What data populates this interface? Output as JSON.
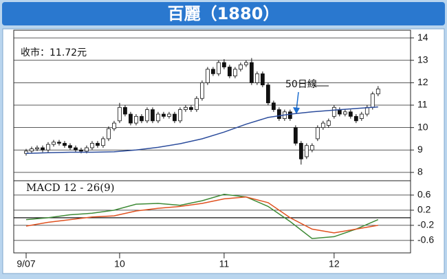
{
  "chart_data": [
    {
      "type": "candlestick",
      "title": "百麗（1880）",
      "annotations": [
        "收市：11.72元"
      ],
      "open": [
        8.85,
        8.95,
        9.05,
        9.1,
        9.0,
        9.25,
        9.35,
        9.3,
        9.2,
        9.1,
        9.0,
        8.95,
        9.1,
        9.3,
        9.2,
        9.5,
        9.95,
        10.3,
        10.9,
        10.6,
        10.2,
        10.5,
        10.3,
        10.8,
        10.3,
        10.6,
        10.5,
        10.6,
        10.3,
        10.8,
        10.9,
        10.8,
        11.3,
        12.0,
        12.6,
        12.4,
        12.9,
        12.7,
        12.3,
        12.6,
        12.8,
        12.9,
        12.0,
        12.4,
        11.9,
        11.1,
        10.8,
        10.4,
        10.7,
        10.0,
        9.3,
        8.7,
        9.0,
        9.5,
        10.0,
        10.1,
        10.5,
        10.8,
        10.6,
        10.7,
        10.5,
        10.4,
        10.6,
        10.9,
        11.5
      ],
      "high": [
        9.05,
        9.15,
        9.2,
        9.2,
        9.35,
        9.45,
        9.45,
        9.4,
        9.3,
        9.2,
        9.1,
        9.2,
        9.4,
        9.4,
        9.6,
        10.05,
        10.3,
        11.1,
        11.0,
        10.7,
        10.6,
        10.6,
        10.9,
        10.9,
        10.7,
        10.7,
        10.7,
        10.7,
        10.9,
        11.0,
        11.0,
        11.4,
        12.1,
        12.7,
        12.7,
        13.0,
        13.05,
        12.8,
        12.7,
        12.9,
        13.0,
        13.1,
        12.5,
        12.5,
        12.0,
        11.2,
        10.9,
        10.8,
        10.8,
        10.1,
        9.4,
        9.3,
        9.3,
        10.1,
        10.3,
        10.4,
        11.0,
        10.9,
        10.8,
        10.8,
        10.6,
        10.7,
        11.0,
        11.6,
        11.85
      ],
      "low": [
        8.75,
        8.85,
        8.95,
        8.9,
        8.9,
        9.15,
        9.2,
        9.1,
        9.0,
        8.9,
        8.85,
        8.85,
        9.0,
        9.1,
        9.1,
        9.4,
        9.85,
        10.2,
        10.5,
        10.1,
        10.1,
        10.2,
        10.2,
        10.2,
        10.2,
        10.4,
        10.4,
        10.2,
        10.2,
        10.7,
        10.7,
        10.7,
        11.2,
        11.9,
        12.3,
        12.3,
        12.6,
        12.2,
        12.2,
        12.5,
        12.7,
        11.9,
        11.9,
        11.8,
        11.0,
        10.7,
        10.3,
        10.3,
        10.3,
        9.2,
        8.35,
        8.6,
        8.9,
        9.4,
        9.9,
        10.0,
        10.4,
        10.5,
        10.5,
        10.4,
        10.2,
        10.3,
        10.5,
        10.8,
        11.4
      ],
      "close": [
        8.95,
        9.05,
        9.1,
        9.0,
        9.25,
        9.35,
        9.3,
        9.2,
        9.1,
        9.0,
        8.95,
        9.1,
        9.3,
        9.2,
        9.5,
        9.95,
        10.2,
        10.9,
        10.6,
        10.2,
        10.5,
        10.3,
        10.8,
        10.3,
        10.6,
        10.5,
        10.6,
        10.3,
        10.8,
        10.9,
        10.8,
        11.3,
        12.0,
        12.6,
        12.4,
        12.9,
        12.7,
        12.3,
        12.6,
        12.8,
        12.9,
        12.0,
        12.4,
        11.9,
        11.1,
        10.8,
        10.4,
        10.7,
        10.4,
        9.3,
        8.6,
        9.2,
        9.2,
        10.0,
        10.2,
        10.3,
        10.9,
        10.6,
        10.7,
        10.5,
        10.3,
        10.6,
        10.9,
        11.5,
        11.72
      ],
      "up_color": "#ffffff",
      "down_color": "#111111",
      "series": [
        {
          "name": "50日線",
          "color": "#2b4c9c",
          "x": [
            0,
            4,
            8,
            12,
            16,
            20,
            24,
            28,
            32,
            36,
            40,
            44,
            48,
            52,
            56,
            60,
            64
          ],
          "values": [
            8.85,
            8.88,
            8.9,
            8.9,
            8.92,
            9.0,
            9.12,
            9.28,
            9.5,
            9.8,
            10.15,
            10.45,
            10.6,
            10.7,
            10.78,
            10.85,
            10.92
          ]
        }
      ],
      "xlim": [
        -2.25,
        69.9
      ],
      "ylim": [
        7.66,
        14.34
      ],
      "yticks": [
        8,
        9,
        10,
        11,
        12,
        13,
        14
      ],
      "grid": true
    },
    {
      "type": "line",
      "title": "MACD 12 - 26(9)",
      "series": [
        {
          "color": "#3d8a35",
          "x": [
            0,
            4,
            8,
            12,
            16,
            20,
            24,
            28,
            32,
            36,
            40,
            44,
            48,
            52,
            56,
            60,
            64
          ],
          "values": [
            -0.05,
            0.0,
            0.08,
            0.12,
            0.2,
            0.36,
            0.38,
            0.33,
            0.45,
            0.62,
            0.55,
            0.3,
            -0.1,
            -0.55,
            -0.5,
            -0.3,
            -0.05
          ]
        },
        {
          "color": "#e0501e",
          "x": [
            0,
            4,
            8,
            12,
            16,
            20,
            24,
            28,
            32,
            36,
            40,
            44,
            48,
            52,
            56,
            60,
            64
          ],
          "values": [
            -0.22,
            -0.12,
            -0.05,
            0.02,
            0.05,
            0.18,
            0.25,
            0.3,
            0.38,
            0.5,
            0.55,
            0.4,
            0.0,
            -0.3,
            -0.4,
            -0.3,
            -0.2
          ]
        }
      ],
      "xlim": [
        -2.25,
        69.9
      ],
      "xticks": [
        {
          "value": 0,
          "label": "9/07"
        },
        {
          "value": 17,
          "label": "10"
        },
        {
          "value": 36,
          "label": "11"
        },
        {
          "value": 56,
          "label": "12"
        }
      ],
      "ylim": [
        -0.93,
        0.98
      ],
      "yticks": [
        0.6,
        0.2,
        -0.2,
        -0.6
      ],
      "grid": true
    }
  ]
}
